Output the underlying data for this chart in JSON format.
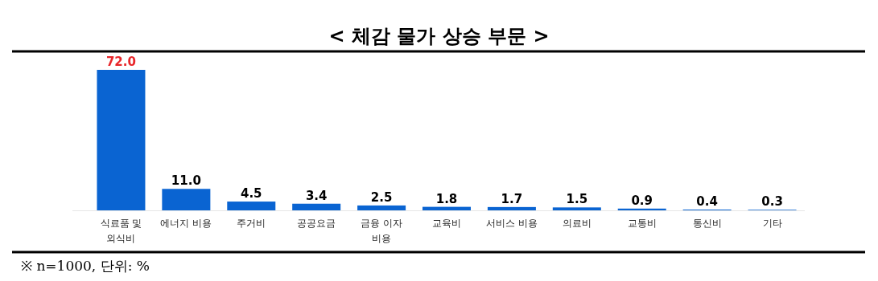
{
  "chart_data": {
    "type": "bar",
    "title": "< 체감 물가 상승 부문 >",
    "categories": [
      "식료품 및 외식비",
      "에너지 비용",
      "주거비",
      "공공요금",
      "금융 이자 비용",
      "교육비",
      "서비스 비용",
      "의료비",
      "교통비",
      "통신비",
      "기타"
    ],
    "values": [
      72.0,
      11.0,
      4.5,
      3.4,
      2.5,
      1.8,
      1.7,
      1.5,
      0.9,
      0.4,
      0.3
    ],
    "value_labels": [
      "72.0",
      "11.0",
      "4.5",
      "3.4",
      "2.5",
      "1.8",
      "1.7",
      "1.5",
      "0.9",
      "0.4",
      "0.3"
    ],
    "color": "#0a64d2",
    "annotations": [
      "※ n=1000, 단위: %"
    ]
  }
}
